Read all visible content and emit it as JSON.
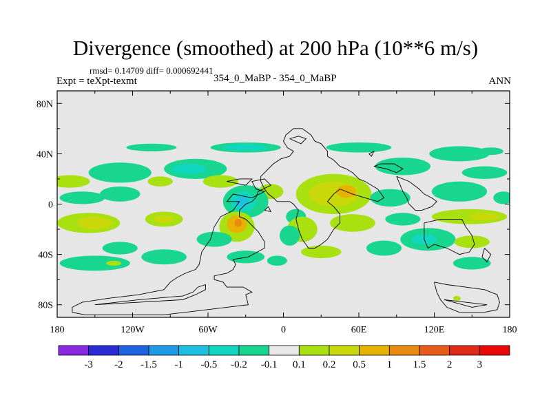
{
  "title": "Divergence (smoothed) at 200 hPa (10**6 m/s)",
  "stats_line": "rmsd= 0.14709 diff= 0.000692441",
  "left_label": "Expt = teXpt-texmt",
  "center_label": "354_0_MaBP - 354_0_MaBP",
  "right_label": "ANN",
  "colors": {
    "background_field": "#e6e6e6",
    "coast": "#000000"
  },
  "chart_data": {
    "type": "heatmap",
    "xlim": [
      -180,
      180
    ],
    "ylim": [
      -90,
      90
    ],
    "x_ticks": [
      {
        "value": -180,
        "label": "180"
      },
      {
        "value": -120,
        "label": "120W"
      },
      {
        "value": -60,
        "label": "60W"
      },
      {
        "value": 0,
        "label": "0"
      },
      {
        "value": 60,
        "label": "60E"
      },
      {
        "value": 120,
        "label": "120E"
      },
      {
        "value": 180,
        "label": "180"
      }
    ],
    "y_ticks": [
      {
        "value": 80,
        "label": "80N"
      },
      {
        "value": 40,
        "label": "40N"
      },
      {
        "value": 0,
        "label": "0"
      },
      {
        "value": -40,
        "label": "40S"
      },
      {
        "value": -80,
        "label": "80S"
      }
    ],
    "colorbar": {
      "levels": [
        "-3",
        "-2",
        "-1.5",
        "-1",
        "-0.5",
        "-0.2",
        "-0.1",
        "0.1",
        "0.2",
        "0.5",
        "1",
        "1.5",
        "2",
        "3"
      ],
      "colors": [
        "#8a2be2",
        "#2a2ad6",
        "#1e64e0",
        "#1e9be6",
        "#1ebfe0",
        "#10d6c0",
        "#18d690",
        "#e8e8e8",
        "#a8e010",
        "#c8d808",
        "#e6b400",
        "#e88a10",
        "#e85a18",
        "#e02a18",
        "#e80808"
      ]
    },
    "contours": [
      {
        "color": "#18d690",
        "lon": -105,
        "lat": 45,
        "rx": 20,
        "ry": 3
      },
      {
        "color": "#18d690",
        "lon": -30,
        "lat": 45,
        "rx": 28,
        "ry": 4
      },
      {
        "color": "#10d6c0",
        "lon": -30,
        "lat": 45,
        "rx": 18,
        "ry": 2.5
      },
      {
        "color": "#18d690",
        "lon": 60,
        "lat": 45,
        "rx": 26,
        "ry": 4
      },
      {
        "color": "#18d690",
        "lon": 140,
        "lat": 40,
        "rx": 24,
        "ry": 6
      },
      {
        "color": "#18d690",
        "lon": 165,
        "lat": 42,
        "rx": 10,
        "ry": 3
      },
      {
        "color": "#18d690",
        "lon": -130,
        "lat": 25,
        "rx": 25,
        "ry": 8
      },
      {
        "color": "#18d690",
        "lon": -70,
        "lat": 28,
        "rx": 25,
        "ry": 8
      },
      {
        "color": "#10d6c0",
        "lon": -75,
        "lat": 28,
        "rx": 14,
        "ry": 4
      },
      {
        "color": "#18d690",
        "lon": 95,
        "lat": 30,
        "rx": 22,
        "ry": 7
      },
      {
        "color": "#18d690",
        "lon": 160,
        "lat": 25,
        "rx": 18,
        "ry": 5
      },
      {
        "color": "#a8e010",
        "lon": -170,
        "lat": 18,
        "rx": 16,
        "ry": 5
      },
      {
        "color": "#a8e010",
        "lon": -98,
        "lat": 18,
        "rx": 10,
        "ry": 4
      },
      {
        "color": "#a8e010",
        "lon": -50,
        "lat": 18,
        "rx": 14,
        "ry": 5
      },
      {
        "color": "#a8e010",
        "lon": 40,
        "lat": 8,
        "rx": 30,
        "ry": 16
      },
      {
        "color": "#c8d808",
        "lon": 40,
        "lat": 8,
        "rx": 20,
        "ry": 10
      },
      {
        "color": "#e6b400",
        "lon": 50,
        "lat": 10,
        "rx": 8,
        "ry": 5
      },
      {
        "color": "#a8e010",
        "lon": -10,
        "lat": 10,
        "rx": 10,
        "ry": 6
      },
      {
        "color": "#18d690",
        "lon": -30,
        "lat": 2,
        "rx": 18,
        "ry": 13
      },
      {
        "color": "#10d6c0",
        "lon": -32,
        "lat": 2,
        "rx": 10,
        "ry": 8
      },
      {
        "color": "#1ebfe0",
        "lon": -33,
        "lat": 2,
        "rx": 5,
        "ry": 4
      },
      {
        "color": "#18d690",
        "lon": 10,
        "lat": -10,
        "rx": 8,
        "ry": 6
      },
      {
        "color": "#18d690",
        "lon": -160,
        "lat": 5,
        "rx": 18,
        "ry": 5
      },
      {
        "color": "#18d690",
        "lon": -130,
        "lat": 8,
        "rx": 16,
        "ry": 6
      },
      {
        "color": "#18d690",
        "lon": 85,
        "lat": 5,
        "rx": 16,
        "ry": 7
      },
      {
        "color": "#18d690",
        "lon": 140,
        "lat": 10,
        "rx": 22,
        "ry": 8
      },
      {
        "color": "#18d690",
        "lon": 175,
        "lat": 5,
        "rx": 8,
        "ry": 5
      },
      {
        "color": "#a8e010",
        "lon": -155,
        "lat": -15,
        "rx": 25,
        "ry": 8
      },
      {
        "color": "#c8d808",
        "lon": -150,
        "lat": -15,
        "rx": 14,
        "ry": 5
      },
      {
        "color": "#a8e010",
        "lon": -95,
        "lat": -12,
        "rx": 15,
        "ry": 6
      },
      {
        "color": "#c8d808",
        "lon": -95,
        "lat": -12,
        "rx": 8,
        "ry": 3
      },
      {
        "color": "#a8e010",
        "lon": -37,
        "lat": -18,
        "rx": 14,
        "ry": 12
      },
      {
        "color": "#e6b400",
        "lon": -37,
        "lat": -16,
        "rx": 8,
        "ry": 7
      },
      {
        "color": "#e88a10",
        "lon": -36,
        "lat": -15,
        "rx": 3,
        "ry": 3
      },
      {
        "color": "#a8e010",
        "lon": 15,
        "lat": -20,
        "rx": 12,
        "ry": 10
      },
      {
        "color": "#18d690",
        "lon": 5,
        "lat": -25,
        "rx": 8,
        "ry": 8
      },
      {
        "color": "#a8e010",
        "lon": 55,
        "lat": -15,
        "rx": 18,
        "ry": 7
      },
      {
        "color": "#a8e010",
        "lon": 148,
        "lat": -10,
        "rx": 30,
        "ry": 6
      },
      {
        "color": "#c8d808",
        "lon": 160,
        "lat": -10,
        "rx": 12,
        "ry": 3
      },
      {
        "color": "#18d690",
        "lon": 95,
        "lat": -12,
        "rx": 14,
        "ry": 5
      },
      {
        "color": "#18d690",
        "lon": 115,
        "lat": -28,
        "rx": 22,
        "ry": 9
      },
      {
        "color": "#10d6c0",
        "lon": 112,
        "lat": -28,
        "rx": 10,
        "ry": 4
      },
      {
        "color": "#a8e010",
        "lon": 150,
        "lat": -30,
        "rx": 14,
        "ry": 5
      },
      {
        "color": "#18d690",
        "lon": 80,
        "lat": -35,
        "rx": 14,
        "ry": 6
      },
      {
        "color": "#18d690",
        "lon": -55,
        "lat": -28,
        "rx": 14,
        "ry": 6
      },
      {
        "color": "#a8e010",
        "lon": 30,
        "lat": -38,
        "rx": 16,
        "ry": 5
      },
      {
        "color": "#18d690",
        "lon": -130,
        "lat": -35,
        "rx": 14,
        "ry": 5
      },
      {
        "color": "#18d690",
        "lon": -150,
        "lat": -47,
        "rx": 28,
        "ry": 6
      },
      {
        "color": "#a8e010",
        "lon": -135,
        "lat": -47,
        "rx": 6,
        "ry": 2
      },
      {
        "color": "#18d690",
        "lon": -95,
        "lat": -42,
        "rx": 18,
        "ry": 6
      },
      {
        "color": "#18d690",
        "lon": -30,
        "lat": -42,
        "rx": 15,
        "ry": 5
      },
      {
        "color": "#18d690",
        "lon": -5,
        "lat": -45,
        "rx": 8,
        "ry": 4
      },
      {
        "color": "#18d690",
        "lon": 150,
        "lat": -47,
        "rx": 15,
        "ry": 5
      },
      {
        "color": "#a8e010",
        "lon": 138,
        "lat": -75,
        "rx": 3,
        "ry": 2
      }
    ],
    "coastlines": [
      [
        [
          -158,
          -88
        ],
        [
          -95,
          -88
        ],
        [
          -70,
          -85
        ],
        [
          -45,
          -82
        ],
        [
          -28,
          -80
        ],
        [
          -30,
          -72
        ],
        [
          -25,
          -70
        ],
        [
          -32,
          -66
        ],
        [
          -45,
          -66
        ],
        [
          -48,
          -62
        ],
        [
          -55,
          -60
        ],
        [
          -55,
          -57
        ],
        [
          -45,
          -55
        ],
        [
          -40,
          -52
        ],
        [
          -38,
          -48
        ],
        [
          -40,
          -44
        ],
        [
          -28,
          -42
        ],
        [
          -15,
          -35
        ],
        [
          -15,
          -30
        ],
        [
          -20,
          -22
        ],
        [
          -30,
          -12
        ],
        [
          -35,
          -10
        ],
        [
          -35,
          -5
        ],
        [
          -30,
          0
        ],
        [
          -25,
          2
        ],
        [
          -22,
          5
        ],
        [
          -20,
          10
        ],
        [
          -10,
          15
        ],
        [
          -15,
          20
        ],
        [
          -25,
          18
        ],
        [
          -22,
          12
        ],
        [
          -15,
          10
        ],
        [
          -25,
          5
        ],
        [
          -40,
          8
        ],
        [
          -45,
          2
        ],
        [
          -35,
          2
        ],
        [
          -40,
          -5
        ],
        [
          -50,
          -10
        ],
        [
          -55,
          -18
        ],
        [
          -58,
          -28
        ],
        [
          -65,
          -38
        ],
        [
          -67,
          -48
        ],
        [
          -70,
          -52
        ],
        [
          -78,
          -55
        ],
        [
          -84,
          -58
        ],
        [
          -90,
          -62
        ],
        [
          -95,
          -68
        ],
        [
          -115,
          -72
        ],
        [
          -140,
          -75
        ],
        [
          -160,
          -78
        ],
        [
          -168,
          -82
        ],
        [
          -168,
          -86
        ],
        [
          -158,
          -88
        ]
      ],
      [
        [
          -150,
          -80
        ],
        [
          -115,
          -78
        ],
        [
          -80,
          -76
        ],
        [
          -70,
          -72
        ],
        [
          -62,
          -68
        ],
        [
          -62,
          -64
        ],
        [
          -68,
          -66
        ],
        [
          -72,
          -70
        ],
        [
          -80,
          -73
        ],
        [
          -115,
          -76
        ],
        [
          -150,
          -80
        ]
      ],
      [
        [
          8,
          60
        ],
        [
          15,
          60
        ],
        [
          22,
          55
        ],
        [
          25,
          50
        ],
        [
          30,
          48
        ],
        [
          35,
          42
        ],
        [
          35,
          38
        ],
        [
          40,
          35
        ],
        [
          45,
          30
        ],
        [
          50,
          28
        ],
        [
          55,
          25
        ],
        [
          60,
          20
        ],
        [
          65,
          18
        ],
        [
          70,
          15
        ],
        [
          75,
          12
        ],
        [
          80,
          5
        ],
        [
          75,
          2
        ],
        [
          65,
          5
        ],
        [
          55,
          8
        ],
        [
          45,
          12
        ],
        [
          40,
          8
        ],
        [
          35,
          2
        ],
        [
          40,
          -2
        ],
        [
          45,
          -8
        ],
        [
          45,
          -15
        ],
        [
          40,
          -20
        ],
        [
          35,
          -28
        ],
        [
          30,
          -32
        ],
        [
          25,
          -35
        ],
        [
          20,
          -35
        ],
        [
          15,
          -28
        ],
        [
          12,
          -20
        ],
        [
          10,
          -12
        ],
        [
          12,
          -5
        ],
        [
          8,
          0
        ],
        [
          5,
          2
        ],
        [
          -5,
          2
        ],
        [
          -8,
          5
        ],
        [
          -12,
          8
        ],
        [
          -15,
          12
        ],
        [
          -18,
          18
        ],
        [
          -18,
          22
        ],
        [
          -12,
          28
        ],
        [
          -8,
          32
        ],
        [
          -2,
          36
        ],
        [
          5,
          38
        ],
        [
          8,
          42
        ],
        [
          3,
          45
        ],
        [
          0,
          50
        ],
        [
          2,
          55
        ],
        [
          8,
          60
        ]
      ],
      [
        [
          90,
          22
        ],
        [
          100,
          18
        ],
        [
          108,
          12
        ],
        [
          112,
          8
        ],
        [
          118,
          5
        ],
        [
          122,
          2
        ],
        [
          118,
          -2
        ],
        [
          110,
          -5
        ],
        [
          105,
          -5
        ],
        [
          100,
          0
        ],
        [
          98,
          5
        ],
        [
          95,
          10
        ],
        [
          90,
          22
        ]
      ],
      [
        [
          112,
          -15
        ],
        [
          125,
          -12
        ],
        [
          135,
          -12
        ],
        [
          142,
          -12
        ],
        [
          145,
          -18
        ],
        [
          150,
          -25
        ],
        [
          152,
          -32
        ],
        [
          148,
          -38
        ],
        [
          140,
          -40
        ],
        [
          130,
          -35
        ],
        [
          120,
          -32
        ],
        [
          115,
          -35
        ],
        [
          112,
          -28
        ],
        [
          112,
          -15
        ]
      ],
      [
        [
          120,
          -62
        ],
        [
          130,
          -64
        ],
        [
          145,
          -66
        ],
        [
          160,
          -68
        ],
        [
          170,
          -72
        ],
        [
          172,
          -78
        ],
        [
          170,
          -84
        ],
        [
          160,
          -86
        ],
        [
          140,
          -86
        ],
        [
          130,
          -82
        ],
        [
          125,
          -76
        ],
        [
          122,
          -70
        ],
        [
          120,
          -62
        ]
      ],
      [
        [
          128,
          -76
        ],
        [
          145,
          -78
        ],
        [
          162,
          -80
        ],
        [
          150,
          -82
        ],
        [
          128,
          -76
        ]
      ],
      [
        [
          72,
          30
        ],
        [
          82,
          28
        ],
        [
          90,
          25
        ],
        [
          95,
          28
        ],
        [
          88,
          32
        ],
        [
          78,
          32
        ],
        [
          72,
          30
        ]
      ],
      [
        [
          5,
          52
        ],
        [
          12,
          54
        ],
        [
          18,
          52
        ],
        [
          14,
          48
        ],
        [
          5,
          52
        ]
      ],
      [
        [
          -45,
          18
        ],
        [
          -35,
          20
        ],
        [
          -25,
          20
        ],
        [
          -30,
          15
        ],
        [
          -45,
          18
        ]
      ],
      [
        [
          68,
          40
        ],
        [
          72,
          42
        ],
        [
          70,
          38
        ],
        [
          68,
          40
        ]
      ],
      [
        [
          -15,
          -5
        ],
        [
          -12,
          -2
        ],
        [
          -10,
          -6
        ],
        [
          -15,
          -5
        ]
      ],
      [
        [
          160,
          -35
        ],
        [
          165,
          -40
        ],
        [
          162,
          -46
        ],
        [
          158,
          -42
        ],
        [
          160,
          -35
        ]
      ]
    ]
  }
}
